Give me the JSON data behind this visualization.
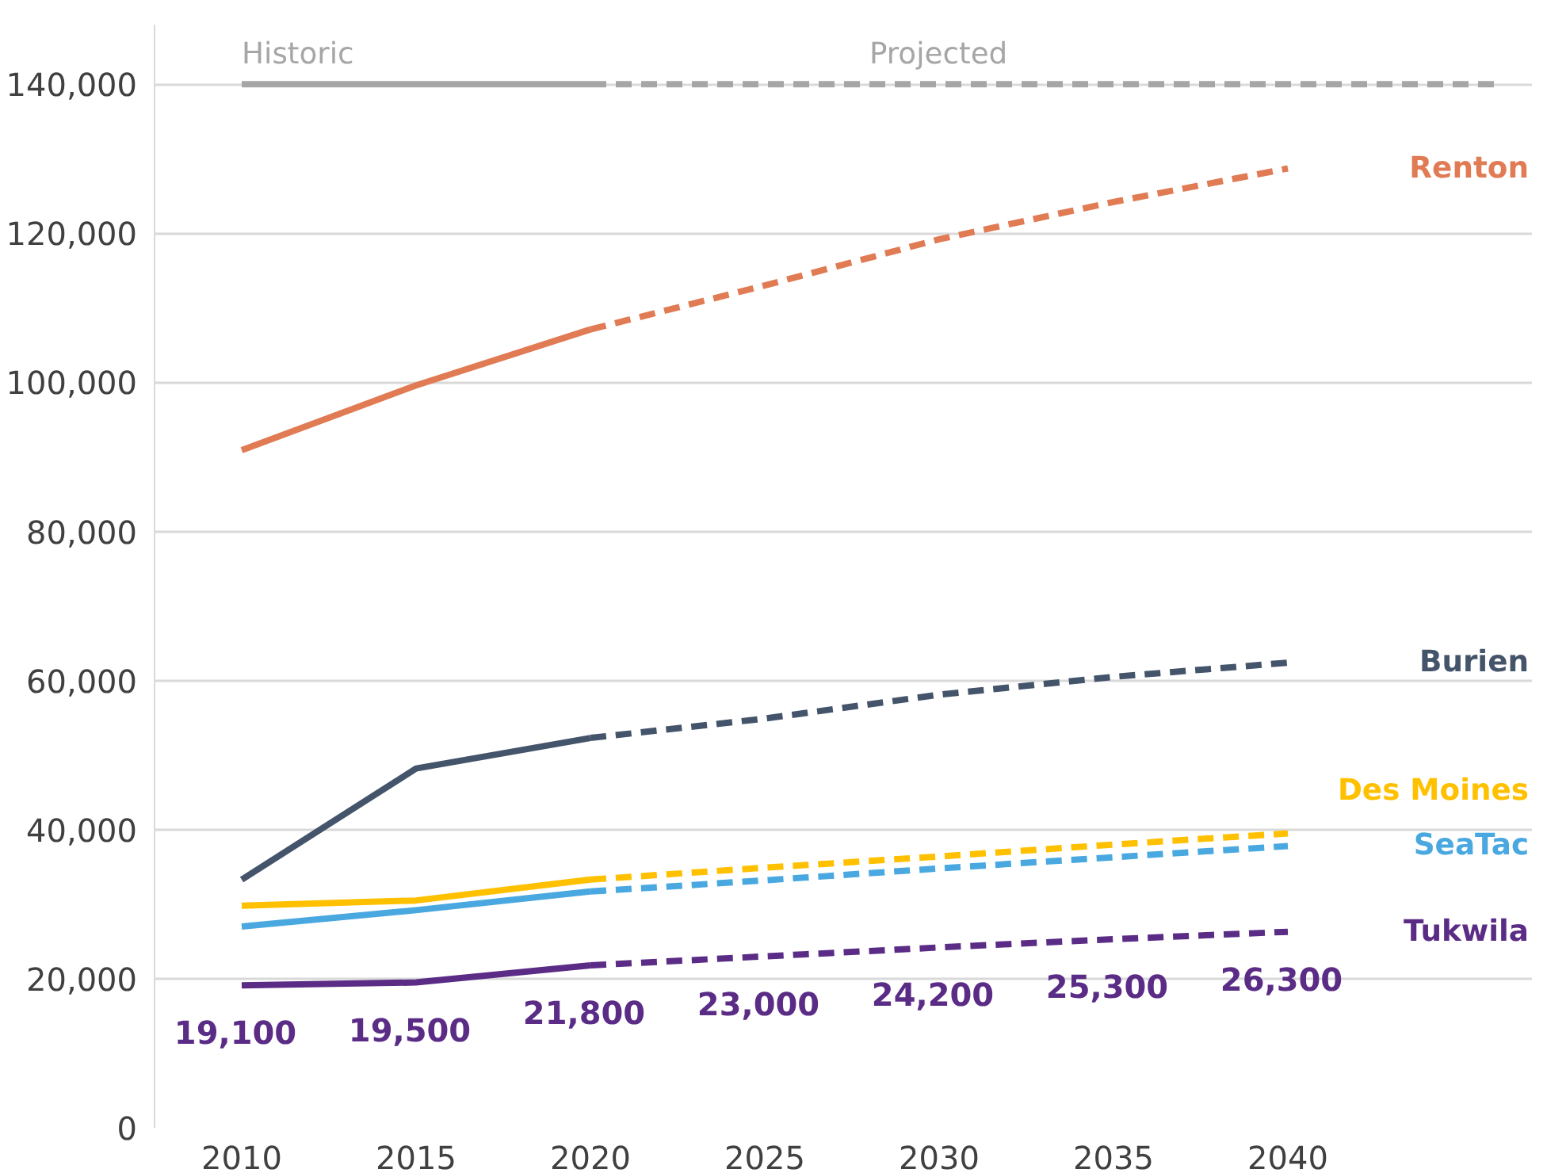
{
  "chart_data": {
    "type": "line",
    "ylim": [
      0,
      148000
    ],
    "yticks": [
      {
        "value": 0,
        "label": "0"
      },
      {
        "value": 20000,
        "label": "20,000"
      },
      {
        "value": 40000,
        "label": "40,000"
      },
      {
        "value": 60000,
        "label": "60,000"
      },
      {
        "value": 80000,
        "label": "80,000"
      },
      {
        "value": 100000,
        "label": "100,000"
      },
      {
        "value": 120000,
        "label": "120,000"
      },
      {
        "value": 140000,
        "label": "140,000"
      }
    ],
    "xlim": [
      2007.5,
      2047
    ],
    "xticks": [
      2010,
      2015,
      2020,
      2025,
      2030,
      2035,
      2040
    ],
    "grid": "y",
    "marker": "none",
    "annotations": [
      {
        "text": "Historic",
        "x": 2010,
        "y": 140000
      },
      {
        "text": "Projected",
        "x": 2028,
        "y": 140000
      }
    ],
    "series": [
      {
        "color": "#a6a6a6",
        "line_style": "solid",
        "x": [
          2010,
          2020
        ],
        "values": [
          140000,
          140000
        ]
      },
      {
        "color": "#a6a6a6",
        "line_style": "dashed",
        "x": [
          2020,
          2046
        ],
        "values": [
          140000,
          140000
        ]
      },
      {
        "color": "#e07b54",
        "line_style": "solid",
        "x": [
          2010,
          2015,
          2020
        ],
        "values": [
          90900,
          99600,
          107100
        ]
      },
      {
        "name": "Renton",
        "color": "#e07b54",
        "line_style": "dashed",
        "x": [
          2020,
          2025,
          2030,
          2035,
          2040
        ],
        "values": [
          107100,
          113000,
          119200,
          124200,
          128700
        ]
      },
      {
        "color": "#44546a",
        "line_style": "solid",
        "x": [
          2010,
          2015,
          2020
        ],
        "values": [
          33300,
          48200,
          52300
        ]
      },
      {
        "name": "Burien",
        "color": "#44546a",
        "line_style": "dashed",
        "x": [
          2020,
          2025,
          2030,
          2035,
          2040
        ],
        "values": [
          52300,
          54900,
          58100,
          60500,
          62400
        ]
      },
      {
        "color": "#ffc000",
        "line_style": "solid",
        "x": [
          2010,
          2015,
          2020
        ],
        "values": [
          29800,
          30500,
          33300
        ]
      },
      {
        "name": "Des Moines",
        "color": "#ffc000",
        "line_style": "dashed",
        "x": [
          2020,
          2025,
          2030,
          2035,
          2040
        ],
        "values": [
          33300,
          34900,
          36400,
          38000,
          39500
        ]
      },
      {
        "color": "#4aa8e0",
        "line_style": "solid",
        "x": [
          2010,
          2015,
          2020
        ],
        "values": [
          27000,
          29200,
          31700
        ]
      },
      {
        "name": "SeaTac",
        "color": "#4aa8e0",
        "line_style": "dashed",
        "x": [
          2020,
          2025,
          2030,
          2035,
          2040
        ],
        "values": [
          31700,
          33200,
          34800,
          36300,
          37800
        ]
      },
      {
        "color": "#5b2c86",
        "line_style": "solid",
        "x": [
          2010,
          2015,
          2020
        ],
        "values": [
          19100,
          19500,
          21800
        ],
        "value_labels": [
          "19,100",
          "19,500",
          "21,800"
        ]
      },
      {
        "name": "Tukwila",
        "color": "#5b2c86",
        "line_style": "dashed",
        "x": [
          2020,
          2025,
          2030,
          2035,
          2040
        ],
        "values": [
          21800,
          23000,
          24200,
          25300,
          26300
        ],
        "value_labels": [
          null,
          "23,000",
          "24,200",
          "25,300",
          "26,300"
        ]
      }
    ]
  }
}
